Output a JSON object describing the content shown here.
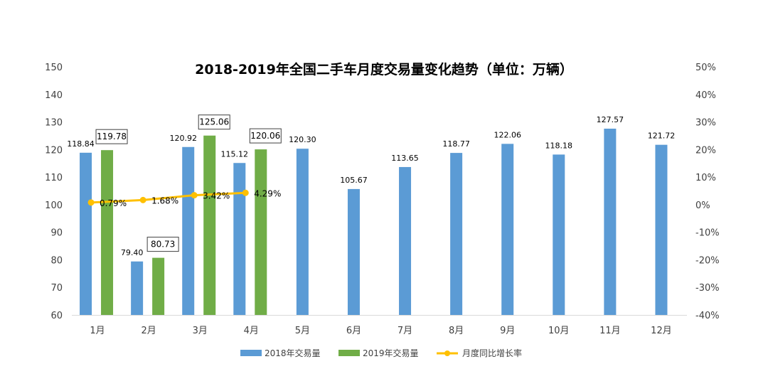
{
  "chart_data": {
    "type": "bar",
    "title": "2018-2019年全国二手车月度交易量变化趋势（单位：万辆）",
    "categories": [
      "1月",
      "2月",
      "3月",
      "4月",
      "5月",
      "6月",
      "7月",
      "8月",
      "9月",
      "10月",
      "11月",
      "12月"
    ],
    "series": [
      {
        "name": "2018年交易量",
        "type": "bar",
        "axis": "left",
        "color": "#5B9BD5",
        "values": [
          118.84,
          79.4,
          120.92,
          115.12,
          120.3,
          105.67,
          113.65,
          118.77,
          122.06,
          118.18,
          127.57,
          121.72
        ],
        "labels": [
          "118.84",
          "79.40",
          "120.92",
          "115.12",
          "120.30",
          "105.67",
          "113.65",
          "118.77",
          "122.06",
          "118.18",
          "127.57",
          "121.72"
        ]
      },
      {
        "name": "2019年交易量",
        "type": "bar",
        "axis": "left",
        "color": "#70AD47",
        "values": [
          119.78,
          80.73,
          125.06,
          120.06,
          null,
          null,
          null,
          null,
          null,
          null,
          null,
          null
        ],
        "labels": [
          "119.78",
          "80.73",
          "125.06",
          "120.06"
        ]
      },
      {
        "name": "月度同比增长率",
        "type": "line",
        "axis": "right",
        "color": "#FFC000",
        "values": [
          0.79,
          1.68,
          3.42,
          4.29,
          null,
          null,
          null,
          null,
          null,
          null,
          null,
          null
        ],
        "labels": [
          "0.79%",
          "1.68%",
          "3.42%",
          "4.29%"
        ]
      }
    ],
    "y_left": {
      "min": 60,
      "max": 150,
      "step": 10,
      "ticks": [
        "60",
        "70",
        "80",
        "90",
        "100",
        "110",
        "120",
        "130",
        "140",
        "150"
      ]
    },
    "y_right": {
      "min": -40,
      "max": 50,
      "step": 10,
      "ticks": [
        "-40%",
        "-30%",
        "-20%",
        "-10%",
        "0%",
        "10%",
        "20%",
        "30%",
        "40%",
        "50%"
      ]
    },
    "grid": false,
    "legend": "bottom"
  }
}
